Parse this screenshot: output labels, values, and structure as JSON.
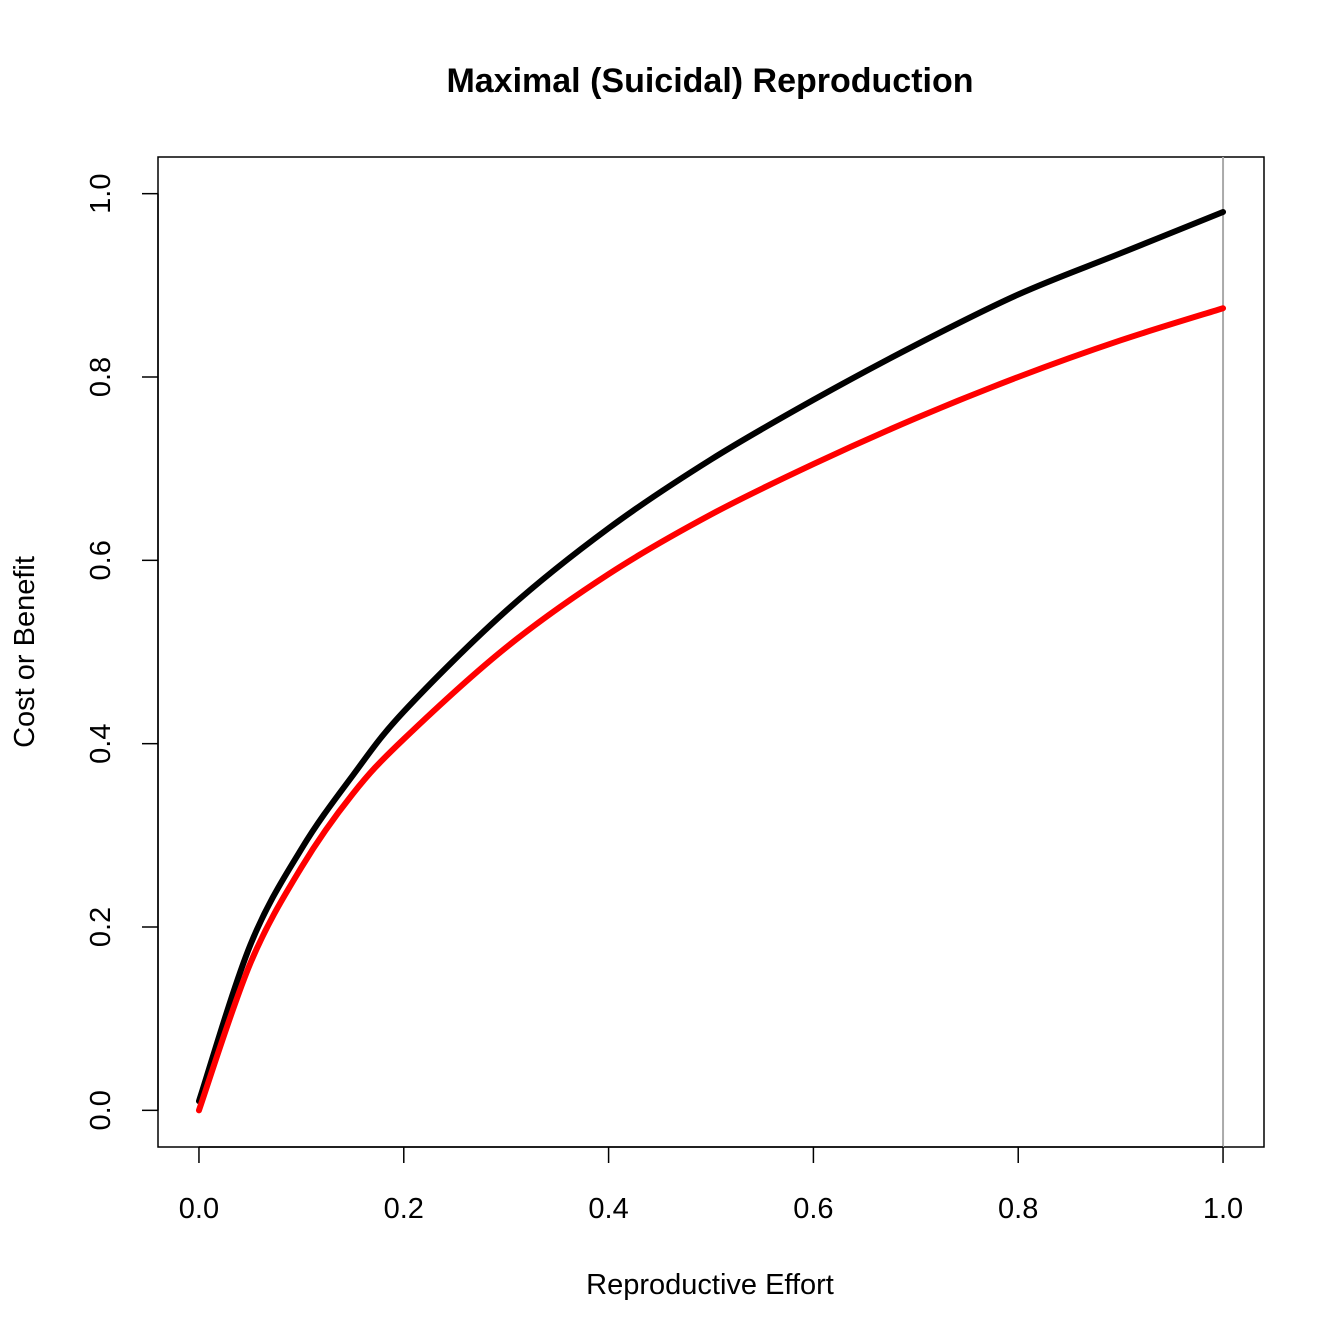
{
  "chart_data": {
    "type": "line",
    "title": "Maximal (Suicidal) Reproduction",
    "xlabel": "Reproductive Effort",
    "ylabel": "Cost or Benefit",
    "xlim": [
      -0.04,
      1.04
    ],
    "ylim": [
      -0.04,
      1.04
    ],
    "x_ticks": [
      "0.0",
      "0.2",
      "0.4",
      "0.6",
      "0.8",
      "1.0"
    ],
    "y_ticks": [
      "0.0",
      "0.2",
      "0.4",
      "0.6",
      "0.8",
      "1.0"
    ],
    "grid": false,
    "legend": "none",
    "vertical_reference_line": {
      "x": 1.0,
      "color": "#aaaaaa"
    },
    "series": [
      {
        "color": "#000000",
        "x": [
          0.0,
          0.05,
          0.1,
          0.15,
          0.2,
          0.3,
          0.4,
          0.5,
          0.6,
          0.7,
          0.8,
          0.9,
          1.0
        ],
        "values": [
          0.01,
          0.18,
          0.285,
          0.365,
          0.435,
          0.545,
          0.635,
          0.71,
          0.775,
          0.835,
          0.89,
          0.935,
          0.98
        ]
      },
      {
        "color": "#ff0000",
        "x": [
          0.0,
          0.05,
          0.1,
          0.15,
          0.2,
          0.3,
          0.4,
          0.5,
          0.6,
          0.7,
          0.8,
          0.9,
          1.0
        ],
        "values": [
          0.0,
          0.16,
          0.265,
          0.345,
          0.405,
          0.505,
          0.585,
          0.65,
          0.705,
          0.755,
          0.8,
          0.84,
          0.875
        ]
      }
    ]
  }
}
